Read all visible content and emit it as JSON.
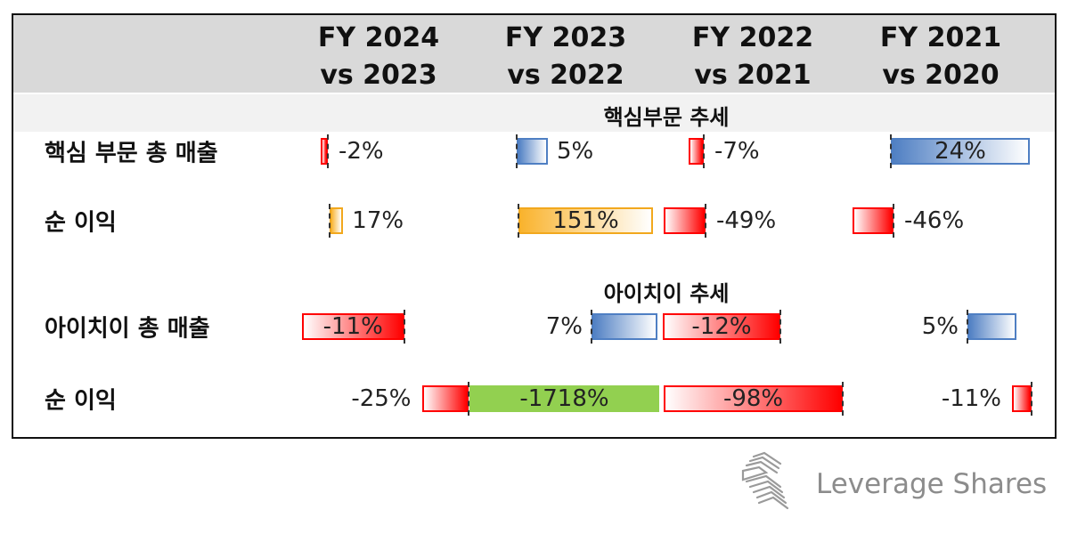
{
  "table": {
    "columns": [
      {
        "line1": "FY 2024",
        "line2": "vs 2023"
      },
      {
        "line1": "FY 2023",
        "line2": "vs 2022"
      },
      {
        "line1": "FY 2022",
        "line2": "vs 2021"
      },
      {
        "line1": "FY 2021",
        "line2": "vs 2020"
      }
    ],
    "sections": [
      {
        "title": "핵심부문 추세"
      },
      {
        "title": "아이치이 추세"
      }
    ]
  },
  "chart_data": {
    "type": "table",
    "columns": [
      "FY 2024 vs 2023",
      "FY 2023 vs 2022",
      "FY 2022 vs 2021",
      "FY 2021 vs 2020"
    ],
    "rows": [
      {
        "section": "핵심부문 추세",
        "label": "핵심 부문 총 매출",
        "values": [
          -2,
          5,
          -7,
          24
        ],
        "display": [
          "-2%",
          "5%",
          "-7%",
          "24%"
        ],
        "styles": [
          "neg-red",
          "pos-blue",
          "neg-red",
          "pos-blue"
        ]
      },
      {
        "section": "핵심부문 추세",
        "label": "순 이익",
        "values": [
          17,
          151,
          -49,
          -46
        ],
        "display": [
          "17%",
          "151%",
          "-49%",
          "-46%"
        ],
        "styles": [
          "pos-orange",
          "pos-orange",
          "neg-red",
          "neg-red"
        ]
      },
      {
        "section": "아이치이 추세",
        "label": "아이치이 총 매출",
        "values": [
          -11,
          7,
          -12,
          5
        ],
        "display": [
          "-11%",
          "7%",
          "-12%",
          "5%"
        ],
        "styles": [
          "neg-red",
          "pos-blue",
          "neg-red",
          "pos-blue"
        ]
      },
      {
        "section": "아이치이 추세",
        "label": "순 이익",
        "values": [
          -25,
          -1718,
          -98,
          -11
        ],
        "display": [
          "-25%",
          "-1718%",
          "-98%",
          "-11%"
        ],
        "styles": [
          "neg-red",
          "solid-green",
          "neg-red",
          "neg-red"
        ]
      }
    ],
    "colors": {
      "positive_blue": "#4f7fc3",
      "positive_orange": "#f9b32d",
      "negative_red": "#ff0000",
      "highlight_green": "#92d050"
    }
  },
  "brand": {
    "name": "Leverage Shares",
    "icon": "leverage-shares-logo-icon"
  }
}
